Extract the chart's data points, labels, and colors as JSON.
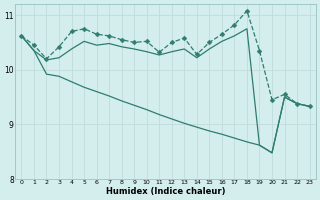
{
  "xlabel": "Humidex (Indice chaleur)",
  "xlim": [
    -0.5,
    23.5
  ],
  "ylim": [
    8,
    11.2
  ],
  "yticks": [
    8,
    9,
    10,
    11
  ],
  "xticks": [
    0,
    1,
    2,
    3,
    4,
    5,
    6,
    7,
    8,
    9,
    10,
    11,
    12,
    13,
    14,
    15,
    16,
    17,
    18,
    19,
    20,
    21,
    22,
    23
  ],
  "bg_color": "#d4eeed",
  "grid_color": "#c0dcdb",
  "line_color": "#2e7d6e",
  "line1_x": [
    0,
    1,
    2,
    3,
    4,
    5,
    6,
    7,
    8,
    9,
    10,
    11,
    12,
    13,
    14,
    15,
    16,
    17,
    18,
    19,
    20,
    21,
    22,
    23
  ],
  "line1_y": [
    10.62,
    10.45,
    10.2,
    10.42,
    10.7,
    10.75,
    10.65,
    10.62,
    10.55,
    10.5,
    10.52,
    10.32,
    10.5,
    10.58,
    10.28,
    10.5,
    10.65,
    10.82,
    11.08,
    10.35,
    9.45,
    9.55,
    9.38,
    9.33
  ],
  "line2_x": [
    0,
    1,
    2,
    3,
    4,
    5,
    6,
    7,
    8,
    9,
    10,
    11,
    12,
    13,
    14,
    15,
    16,
    17,
    18,
    19,
    20,
    21,
    22,
    23
  ],
  "line2_y": [
    10.62,
    10.35,
    10.18,
    10.22,
    10.38,
    10.52,
    10.45,
    10.48,
    10.42,
    10.38,
    10.33,
    10.27,
    10.33,
    10.38,
    10.22,
    10.38,
    10.52,
    10.62,
    10.75,
    8.62,
    8.48,
    9.5,
    9.38,
    9.33
  ],
  "line3_x": [
    0,
    1,
    2,
    3,
    4,
    5,
    6,
    7,
    8,
    9,
    10,
    11,
    12,
    13,
    14,
    15,
    16,
    17,
    18,
    19,
    20,
    21,
    22,
    23
  ],
  "line3_y": [
    10.62,
    10.35,
    9.92,
    9.88,
    9.78,
    9.68,
    9.6,
    9.52,
    9.43,
    9.35,
    9.27,
    9.18,
    9.1,
    9.02,
    8.95,
    8.88,
    8.82,
    8.75,
    8.68,
    8.62,
    8.48,
    9.5,
    9.38,
    9.33
  ],
  "lw": 0.9,
  "ms": 2.5
}
